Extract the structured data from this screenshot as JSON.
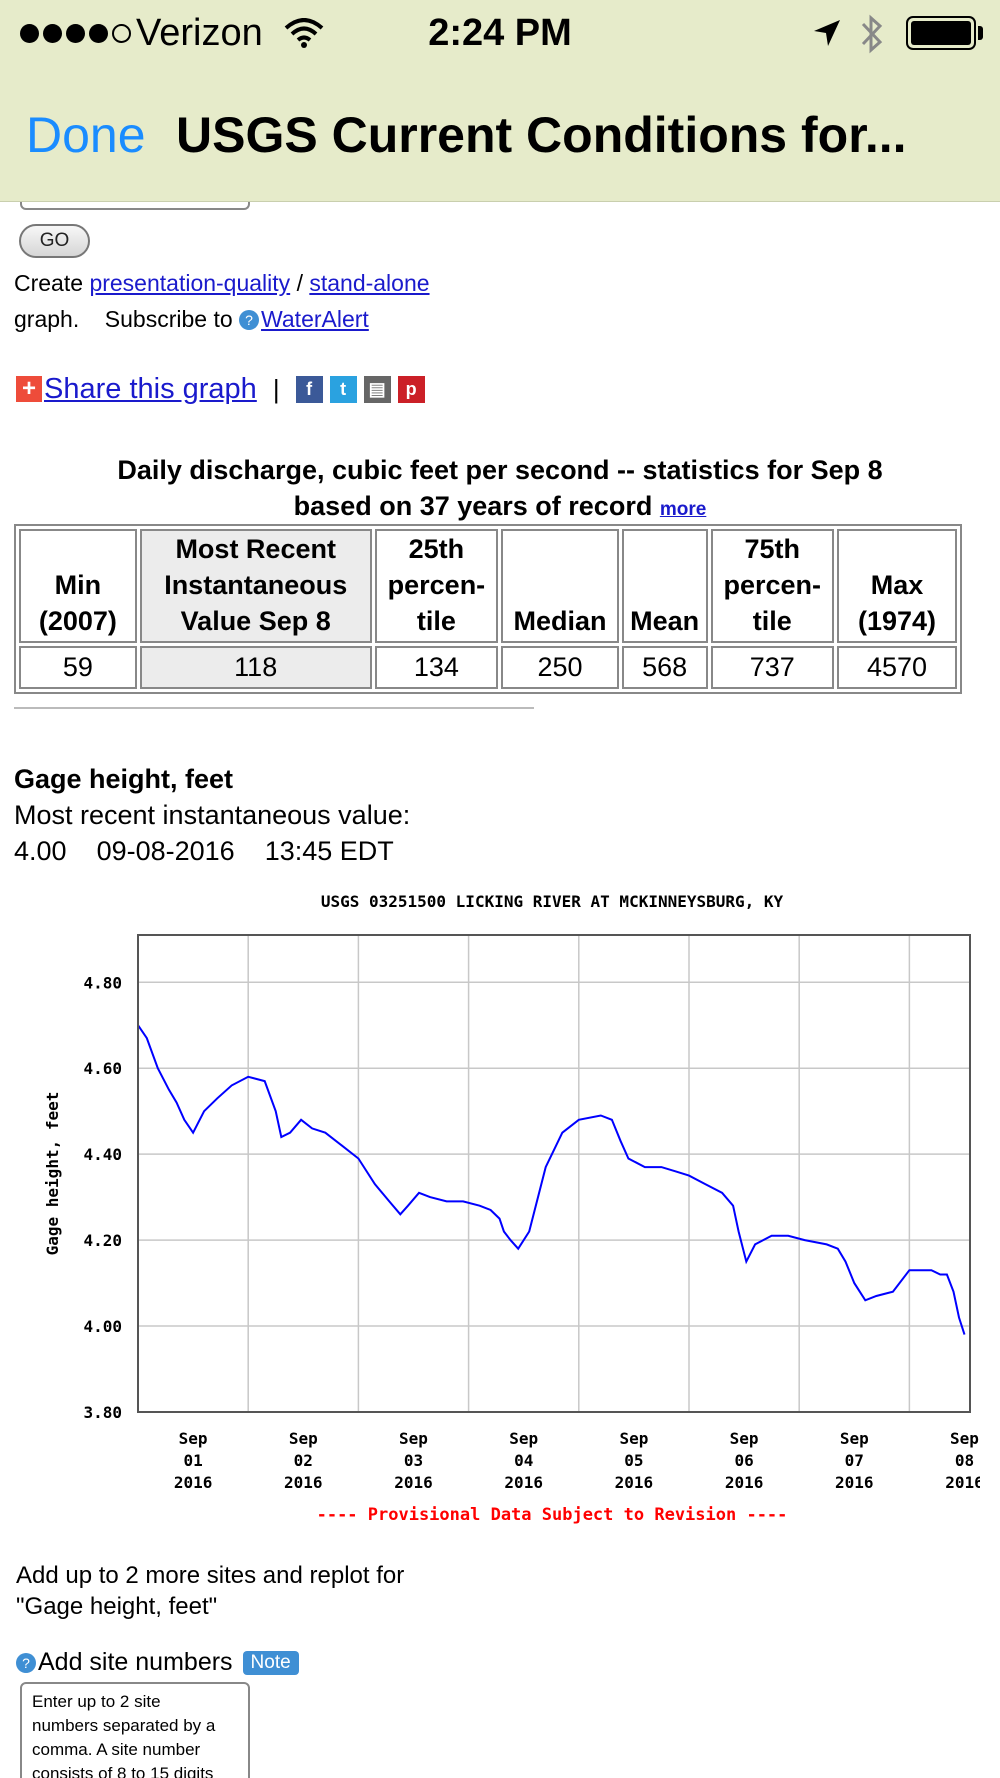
{
  "status_bar": {
    "carrier": "Verizon",
    "time": "2:24 PM"
  },
  "nav": {
    "done": "Done",
    "title": "USGS Current Conditions for..."
  },
  "form": {
    "go_label": "GO"
  },
  "graph_links": {
    "create_text": "Create",
    "presentation_link": "presentation-quality",
    "sep": "/",
    "standalone_link": "stand-alone",
    "graph_text": "graph.",
    "subscribe_text": "Subscribe to",
    "wateralert_link": "WaterAlert",
    "help_glyph": "?"
  },
  "share": {
    "label": "Share this graph",
    "sep": "|",
    "icons": [
      "facebook-icon",
      "twitter-icon",
      "print-icon",
      "pinterest-icon"
    ]
  },
  "stats": {
    "caption_line1": "Daily discharge, cubic feet per second -- statistics for Sep 8",
    "caption_line2": "based on 37 years of record",
    "more": "more",
    "headers": [
      {
        "l1": "",
        "l2": "Min",
        "l3": "(2007)"
      },
      {
        "l1": "Most Recent",
        "l2": "Instantaneous",
        "l3": "Value Sep 8"
      },
      {
        "l1": "25th",
        "l2": "percen-",
        "l3": "tile"
      },
      {
        "l1": "",
        "l2": "",
        "l3": "Median"
      },
      {
        "l1": "",
        "l2": "",
        "l3": "Mean"
      },
      {
        "l1": "75th",
        "l2": "percen-",
        "l3": "tile"
      },
      {
        "l1": "",
        "l2": "Max",
        "l3": "(1974)"
      }
    ],
    "values": [
      "59",
      "118",
      "134",
      "250",
      "568",
      "737",
      "4570"
    ]
  },
  "gage": {
    "title": "Gage height, feet",
    "subtitle": "Most recent instantaneous value:",
    "value": "4.00",
    "date": "09-08-2016",
    "time": "13:45 EDT"
  },
  "chart_data": {
    "type": "line",
    "title": "USGS 03251500 LICKING RIVER AT MCKINNEYSBURG, KY",
    "ylabel": "Gage height, feet",
    "xlabel": "",
    "ylim": [
      3.8,
      4.91
    ],
    "xlim": [
      0,
      7.55
    ],
    "yticks": [
      "4.80",
      "4.60",
      "4.40",
      "4.20",
      "4.00",
      "3.80"
    ],
    "ytick_values": [
      4.8,
      4.6,
      4.4,
      4.2,
      4.0,
      3.8
    ],
    "xticks": [
      {
        "month": "Sep",
        "day": "01",
        "year": "2016"
      },
      {
        "month": "Sep",
        "day": "02",
        "year": "2016"
      },
      {
        "month": "Sep",
        "day": "03",
        "year": "2016"
      },
      {
        "month": "Sep",
        "day": "04",
        "year": "2016"
      },
      {
        "month": "Sep",
        "day": "05",
        "year": "2016"
      },
      {
        "month": "Sep",
        "day": "06",
        "year": "2016"
      },
      {
        "month": "Sep",
        "day": "07",
        "year": "2016"
      },
      {
        "month": "Sep",
        "day": "08",
        "year": "2016"
      }
    ],
    "grid": true,
    "line_color": "#0000ff",
    "footer": "---- Provisional Data Subject to Revision ----",
    "footer_color": "#ff0000",
    "series": [
      {
        "x": [
          0.0,
          0.08,
          0.18,
          0.28,
          0.35,
          0.42,
          0.5,
          0.6,
          0.72,
          0.85,
          1.0,
          1.15,
          1.25,
          1.3,
          1.38,
          1.48,
          1.58,
          1.7,
          1.85,
          2.0,
          2.15,
          2.28,
          2.38,
          2.45,
          2.55,
          2.65,
          2.8,
          2.95,
          3.1,
          3.2,
          3.28,
          3.32,
          3.38,
          3.45,
          3.55,
          3.7,
          3.85,
          4.0,
          4.2,
          4.3,
          4.38,
          4.45,
          4.6,
          4.75,
          4.88,
          5.0,
          5.15,
          5.3,
          5.4,
          5.45,
          5.52,
          5.6,
          5.75,
          5.9,
          6.05,
          6.25,
          6.35,
          6.42,
          6.5,
          6.6,
          6.7,
          6.85,
          7.0,
          7.1,
          7.2,
          7.28,
          7.34,
          7.4,
          7.45,
          7.5
        ],
        "y": [
          4.7,
          4.67,
          4.6,
          4.55,
          4.52,
          4.48,
          4.45,
          4.5,
          4.53,
          4.56,
          4.58,
          4.57,
          4.5,
          4.44,
          4.45,
          4.48,
          4.46,
          4.45,
          4.42,
          4.39,
          4.33,
          4.29,
          4.26,
          4.28,
          4.31,
          4.3,
          4.29,
          4.29,
          4.28,
          4.27,
          4.25,
          4.22,
          4.2,
          4.18,
          4.22,
          4.37,
          4.45,
          4.48,
          4.49,
          4.48,
          4.43,
          4.39,
          4.37,
          4.37,
          4.36,
          4.35,
          4.33,
          4.31,
          4.28,
          4.22,
          4.15,
          4.19,
          4.21,
          4.21,
          4.2,
          4.19,
          4.18,
          4.15,
          4.1,
          4.06,
          4.07,
          4.08,
          4.13,
          4.13,
          4.13,
          4.12,
          4.12,
          4.08,
          4.02,
          3.98
        ]
      }
    ]
  },
  "add_sites": {
    "line1": "Add up to 2 more sites and replot for",
    "line2": "\"Gage height, feet\"",
    "add_label": "Add site numbers",
    "note": "Note",
    "help_glyph": "?",
    "textarea_l1": "Enter up to 2 site",
    "textarea_l2": "numbers separated by a",
    "textarea_l3": "comma. A site number",
    "textarea_l4": "consists of 8 to 15 digits"
  }
}
